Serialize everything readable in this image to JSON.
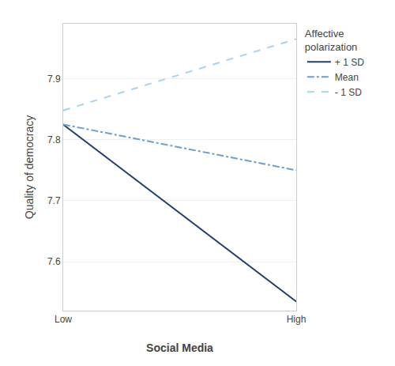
{
  "chart_data": {
    "type": "line",
    "xlabel": "Social Media",
    "ylabel": "Quality of democracy",
    "categories": [
      "Low",
      "High"
    ],
    "series": [
      {
        "name": "+ 1 SD",
        "color": "#1e3f6e",
        "line_style": "solid",
        "values": [
          7.825,
          7.535
        ]
      },
      {
        "name": "Mean",
        "color": "#6b9fcc",
        "line_style": "dashdot",
        "values": [
          7.825,
          7.75
        ]
      },
      {
        "name": "- 1 SD",
        "color": "#a8d4f0",
        "line_style": "dashed",
        "values": [
          7.848,
          7.965
        ]
      }
    ],
    "ylim": [
      7.52,
      7.99
    ],
    "yticks": [
      7.6,
      7.7,
      7.8,
      7.9
    ],
    "grid": "y",
    "legend": "right",
    "legend_title": "Affective\npolarization"
  }
}
